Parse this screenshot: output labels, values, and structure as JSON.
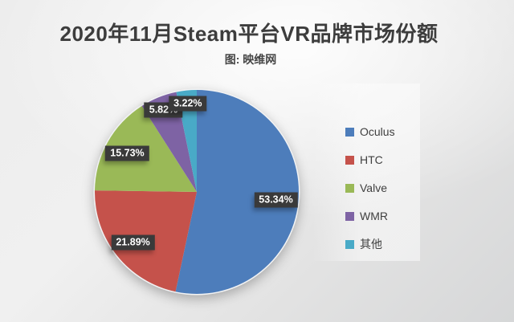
{
  "page": {
    "title": "2020年11月Steam平台VR品牌市场份额",
    "subtitle": "图: 映维网"
  },
  "chart_data": {
    "type": "pie",
    "title": "2020年11月Steam平台VR品牌市场份额",
    "source_note": "图: 映维网",
    "categories": [
      "Oculus",
      "HTC",
      "Valve",
      "WMR",
      "其他"
    ],
    "values": [
      53.34,
      21.89,
      15.73,
      5.82,
      3.22
    ],
    "labels": [
      "53.34%",
      "21.89%",
      "15.73%",
      "5.82%",
      "3.22%"
    ],
    "colors": [
      "#4d7dbb",
      "#c5524b",
      "#9ab957",
      "#7e63a4",
      "#49aac7"
    ],
    "start_angle_deg": 0,
    "direction": "clockwise",
    "legend_position": "right",
    "labels_on_chart": true,
    "label_radii": [
      0.78,
      0.8,
      0.78,
      0.87,
      0.87
    ],
    "label_box_color": "#3a3a3a",
    "label_text_color": "#ffffff"
  }
}
